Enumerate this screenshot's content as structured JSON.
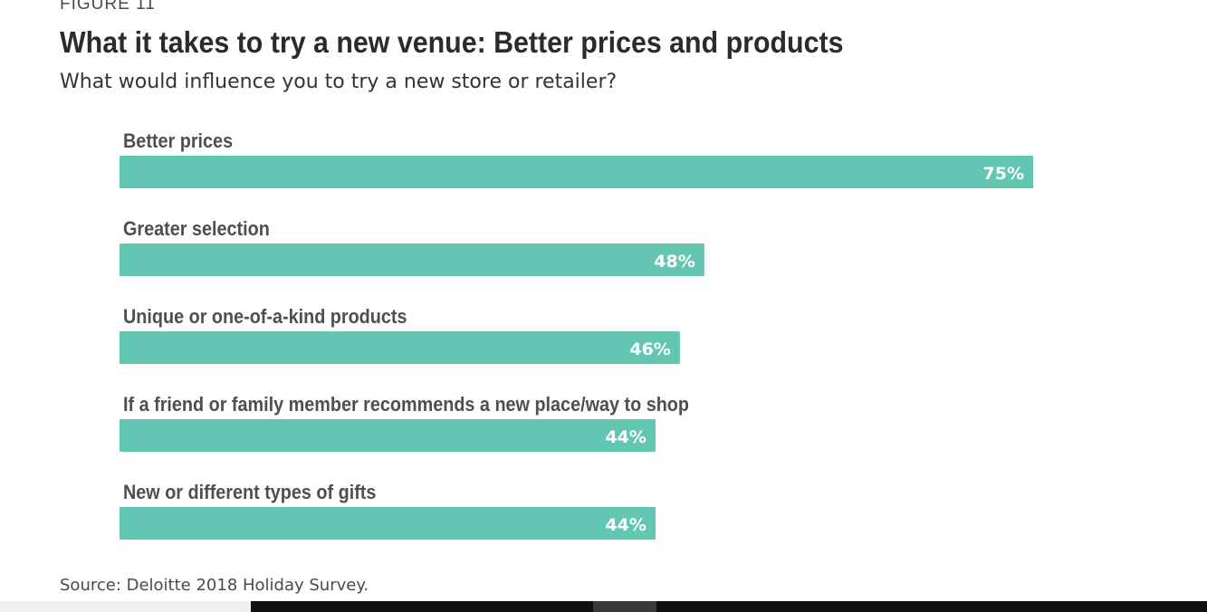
{
  "figure_label": "FIGURE 11",
  "source": "Source: Deloitte 2018 Holiday Survey.",
  "colors": {
    "bar": "#62c6b2",
    "text_dark": "#2b2b2b",
    "label": "#4f4f4f",
    "value_text": "#ffffff"
  },
  "chart_data": {
    "type": "bar",
    "orientation": "horizontal",
    "title": "What it takes to try a new venue: Better prices and products",
    "subtitle": "What would influence you to try a new store or retailer?",
    "categories": [
      "Better prices",
      "Greater selection",
      "Unique or one-of-a-kind products",
      "If a friend or family member recommends a new place/way to shop",
      "New or different types of gifts"
    ],
    "values": [
      75,
      48,
      46,
      44,
      44
    ],
    "value_labels": [
      "75%",
      "48%",
      "46%",
      "44%",
      "44%"
    ],
    "unit": "%",
    "xlim": [
      0,
      75
    ],
    "grid": false,
    "legend": "none"
  }
}
